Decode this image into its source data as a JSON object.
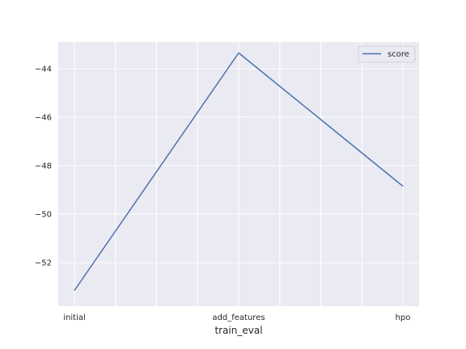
{
  "chart_data": {
    "type": "line",
    "categories": [
      "initial",
      "add_features",
      "hpo"
    ],
    "series": [
      {
        "name": "score",
        "values": [
          -53.15,
          -43.35,
          -48.85
        ],
        "color": "#4c72b0"
      }
    ],
    "xlabel": "train_eval",
    "ylabel": "",
    "ylim": [
      -53.8,
      -42.9
    ],
    "yticks": [
      -52,
      -50,
      -48,
      -46,
      -44
    ],
    "ytick_labels": [
      "−52",
      "−50",
      "−48",
      "−46",
      "−44"
    ],
    "grid": true,
    "legend_position": "top-right",
    "background_color": "#eaeaf2",
    "grid_color": "#ffffff"
  }
}
